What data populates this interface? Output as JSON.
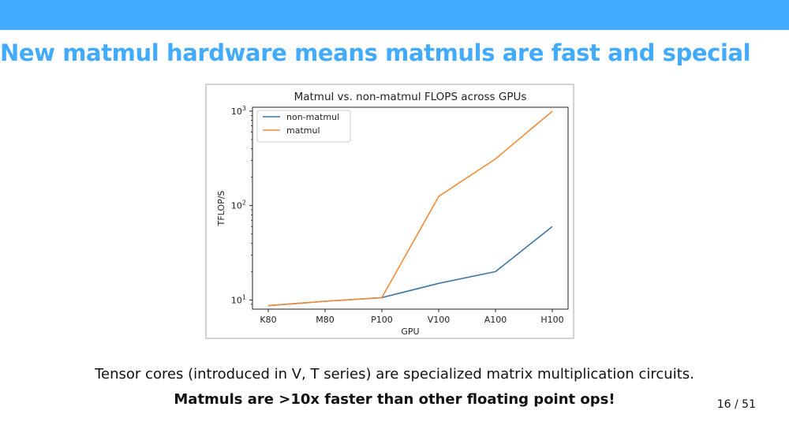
{
  "theme": {
    "accent": "#42aaff",
    "text": "#111111"
  },
  "slide": {
    "title": "New matmul hardware means matmuls are fast and special",
    "note": "Tensor cores (introduced in V, T series) are specialized matrix multiplication circuits.",
    "emphasis": "Matmuls are >10x faster than other floating point ops!",
    "page_number": "16 / 51"
  },
  "chart_data": {
    "type": "line",
    "title": "Matmul vs. non-matmul FLOPS across GPUs",
    "xlabel": "GPU",
    "ylabel": "TFLOP/S",
    "yscale": "log",
    "ylim": [
      8,
      1100
    ],
    "categories": [
      "K80",
      "M80",
      "P100",
      "V100",
      "A100",
      "H100"
    ],
    "yticks": [
      {
        "base": "10",
        "exp": "1"
      },
      {
        "base": "10",
        "exp": "2"
      },
      {
        "base": "10",
        "exp": "3"
      }
    ],
    "grid": false,
    "legend_position": "upper-left",
    "series": [
      {
        "name": "non-matmul",
        "color": "#3b76a8",
        "values": [
          8.7,
          9.7,
          10.6,
          15,
          20,
          60
        ]
      },
      {
        "name": "matmul",
        "color": "#f08a35",
        "values": [
          8.7,
          9.7,
          10.6,
          125,
          312,
          1000
        ]
      }
    ]
  }
}
